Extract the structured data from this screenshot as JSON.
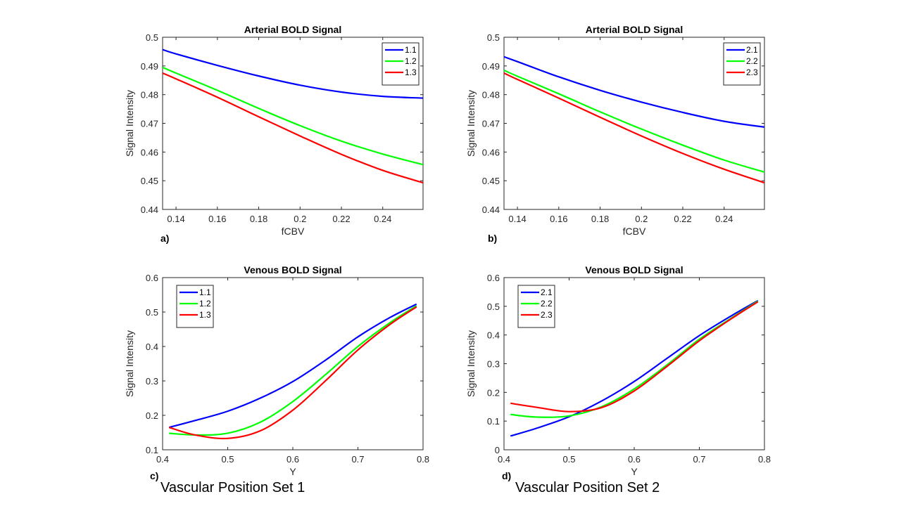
{
  "captions": {
    "set1": "Vascular Position Set 1",
    "set2": "Vascular Position Set 2"
  },
  "colors": {
    "blue": "#0000ff",
    "green": "#00ff00",
    "red": "#ff0000"
  },
  "chart_data": [
    {
      "type": "line",
      "panel_label": "a)",
      "title": "Arterial BOLD Signal",
      "xlabel": "fCBV",
      "ylabel": "Signal  Intensity",
      "xlim": [
        0.1335,
        0.2595
      ],
      "ylim": [
        0.44,
        0.5
      ],
      "xticks": [
        0.14,
        0.16,
        0.18,
        0.2,
        0.22,
        0.24
      ],
      "yticks": [
        0.44,
        0.45,
        0.46,
        0.47,
        0.48,
        0.49,
        0.5
      ],
      "legend_position": "top-right",
      "x": [
        0.1335,
        0.14,
        0.16,
        0.18,
        0.2,
        0.22,
        0.24,
        0.2595
      ],
      "series": [
        {
          "name": "1.1",
          "color": "#0000ff",
          "values": [
            0.4957,
            0.4942,
            0.4902,
            0.4865,
            0.4833,
            0.4809,
            0.4794,
            0.4788
          ]
        },
        {
          "name": "1.2",
          "color": "#00ff00",
          "values": [
            0.4895,
            0.4875,
            0.4815,
            0.4752,
            0.4692,
            0.4638,
            0.4593,
            0.4556
          ]
        },
        {
          "name": "1.3",
          "color": "#ff0000",
          "values": [
            0.4875,
            0.4855,
            0.4791,
            0.4723,
            0.4656,
            0.4592,
            0.4536,
            0.4493
          ]
        }
      ]
    },
    {
      "type": "line",
      "panel_label": "b)",
      "title": "Arterial BOLD Signal",
      "xlabel": "fCBV",
      "ylabel": "Signal Intensity",
      "xlim": [
        0.1335,
        0.2595
      ],
      "ylim": [
        0.44,
        0.5
      ],
      "xticks": [
        0.14,
        0.16,
        0.18,
        0.2,
        0.22,
        0.24
      ],
      "yticks": [
        0.44,
        0.45,
        0.46,
        0.47,
        0.48,
        0.49,
        0.5
      ],
      "legend_position": "top-right",
      "x": [
        0.1335,
        0.14,
        0.16,
        0.18,
        0.2,
        0.22,
        0.24,
        0.2595
      ],
      "series": [
        {
          "name": "2.1",
          "color": "#0000ff",
          "values": [
            0.4932,
            0.4915,
            0.4862,
            0.4815,
            0.4774,
            0.4738,
            0.4707,
            0.4687
          ]
        },
        {
          "name": "2.2",
          "color": "#00ff00",
          "values": [
            0.4885,
            0.4864,
            0.4803,
            0.474,
            0.468,
            0.4624,
            0.4572,
            0.453
          ]
        },
        {
          "name": "2.3",
          "color": "#ff0000",
          "values": [
            0.4875,
            0.4853,
            0.4788,
            0.4721,
            0.4656,
            0.4595,
            0.454,
            0.4493
          ]
        }
      ]
    },
    {
      "type": "line",
      "panel_label": "c)",
      "title": "Venous BOLD Signal",
      "xlabel": "Y",
      "ylabel": "Signal Intensity",
      "xlim": [
        0.4,
        0.8
      ],
      "ylim": [
        0.1,
        0.6
      ],
      "xticks": [
        0.4,
        0.5,
        0.6,
        0.7,
        0.8
      ],
      "yticks": [
        0.1,
        0.2,
        0.3,
        0.4,
        0.5,
        0.6
      ],
      "legend_position": "top-left",
      "x": [
        0.41,
        0.45,
        0.5,
        0.55,
        0.6,
        0.65,
        0.7,
        0.75,
        0.79
      ],
      "series": [
        {
          "name": "1.1",
          "color": "#0000ff",
          "values": [
            0.165,
            0.185,
            0.212,
            0.25,
            0.298,
            0.36,
            0.428,
            0.485,
            0.523
          ]
        },
        {
          "name": "1.2",
          "color": "#00ff00",
          "values": [
            0.148,
            0.143,
            0.148,
            0.18,
            0.24,
            0.318,
            0.4,
            0.47,
            0.518
          ]
        },
        {
          "name": "1.3",
          "color": "#ff0000",
          "values": [
            0.165,
            0.143,
            0.133,
            0.155,
            0.215,
            0.3,
            0.39,
            0.465,
            0.515
          ]
        }
      ]
    },
    {
      "type": "line",
      "panel_label": "d)",
      "title": "Venous BOLD Signal",
      "xlabel": "Y",
      "ylabel": "Signal Intensity",
      "xlim": [
        0.4,
        0.8
      ],
      "ylim": [
        0,
        0.6
      ],
      "xticks": [
        0.4,
        0.5,
        0.6,
        0.7,
        0.8
      ],
      "yticks": [
        0,
        0.1,
        0.2,
        0.3,
        0.4,
        0.5,
        0.6
      ],
      "legend_position": "top-left",
      "x": [
        0.41,
        0.45,
        0.5,
        0.55,
        0.6,
        0.65,
        0.7,
        0.75,
        0.79
      ],
      "series": [
        {
          "name": "2.1",
          "color": "#0000ff",
          "values": [
            0.048,
            0.075,
            0.115,
            0.17,
            0.238,
            0.318,
            0.398,
            0.468,
            0.52
          ]
        },
        {
          "name": "2.2",
          "color": "#00ff00",
          "values": [
            0.123,
            0.114,
            0.118,
            0.15,
            0.212,
            0.295,
            0.385,
            0.46,
            0.518
          ]
        },
        {
          "name": "2.3",
          "color": "#ff0000",
          "values": [
            0.162,
            0.148,
            0.133,
            0.147,
            0.205,
            0.29,
            0.38,
            0.458,
            0.516
          ]
        }
      ]
    }
  ]
}
